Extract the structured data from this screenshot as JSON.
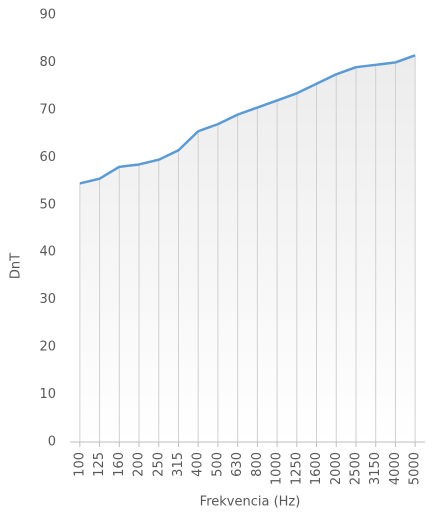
{
  "chart_data": {
    "type": "line",
    "x_label": "Frekvencia (Hz)",
    "y_label": "DnT",
    "categories": [
      "100",
      "125",
      "160",
      "200",
      "250",
      "315",
      "400",
      "500",
      "630",
      "800",
      "1000",
      "1250",
      "1600",
      "2000",
      "2500",
      "3150",
      "4000",
      "5000"
    ],
    "series": [
      {
        "name": "DnT",
        "color": "#5b9bd5",
        "values": [
          54.5,
          55.5,
          58,
          58.5,
          59.5,
          61.5,
          65.5,
          67,
          69,
          70.5,
          72,
          73.5,
          75.5,
          77.5,
          79,
          79.5,
          80,
          81.5
        ]
      }
    ],
    "ylim": [
      0,
      90
    ],
    "yticks": [
      0,
      10,
      20,
      30,
      40,
      50,
      60,
      70,
      80,
      90
    ]
  }
}
